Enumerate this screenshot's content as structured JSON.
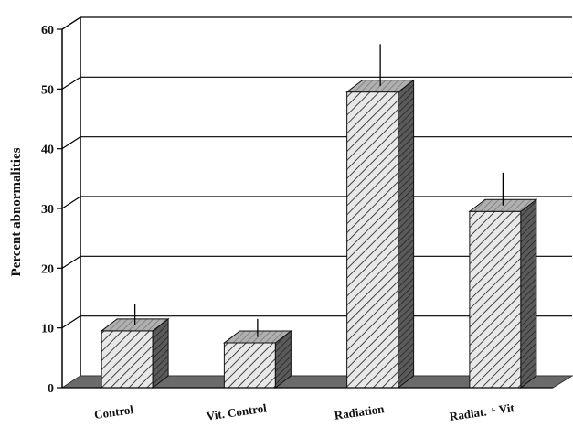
{
  "chart_data": {
    "type": "bar",
    "style": "3d",
    "categories": [
      "Control",
      "Vit. Control",
      "Radiation",
      "Radiat. + Vit"
    ],
    "values": [
      9.5,
      7.5,
      49.5,
      29.5
    ],
    "errors": [
      3.5,
      3.0,
      7.0,
      5.5
    ],
    "title": "",
    "xlabel": "",
    "ylabel": "Percent abnormalities",
    "ylim": [
      0,
      60
    ],
    "yticks": [
      "0",
      "10",
      "20",
      "30",
      "40",
      "50",
      "60"
    ],
    "grid": true,
    "legend": "none",
    "colors": {
      "bar_face": "#e8e8e8",
      "bar_hatch": "#444444",
      "bar_side": "#555555",
      "bar_top": "#9a9a9a",
      "floor": "#6a6a6a",
      "grid": "#000000"
    }
  }
}
